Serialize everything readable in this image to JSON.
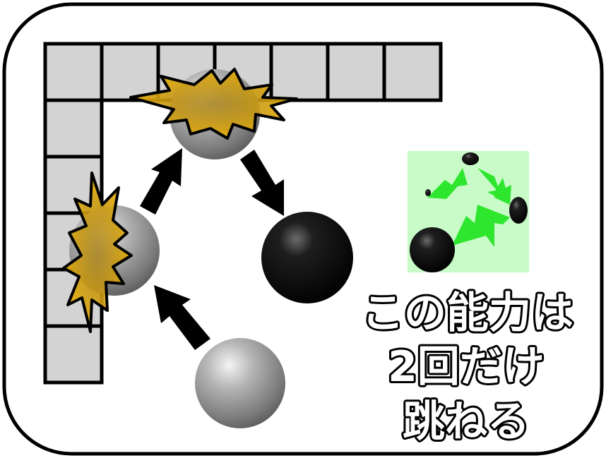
{
  "caption": {
    "lines": [
      "この能力は",
      "2回だけ",
      "跳ねる"
    ]
  },
  "colors": {
    "wall_cell": "#d3d3d3",
    "burst_fill": "#f2b400",
    "inset_bg": "#c8fbc8",
    "inset_arrow": "#2de62d",
    "ball_gray": "#8c8c8c",
    "ball_black": "#050505"
  },
  "icons": [
    "wall-grid",
    "impact-burst-icon",
    "arrow-icon",
    "gray-ball",
    "black-ball",
    "inset-diagram"
  ]
}
